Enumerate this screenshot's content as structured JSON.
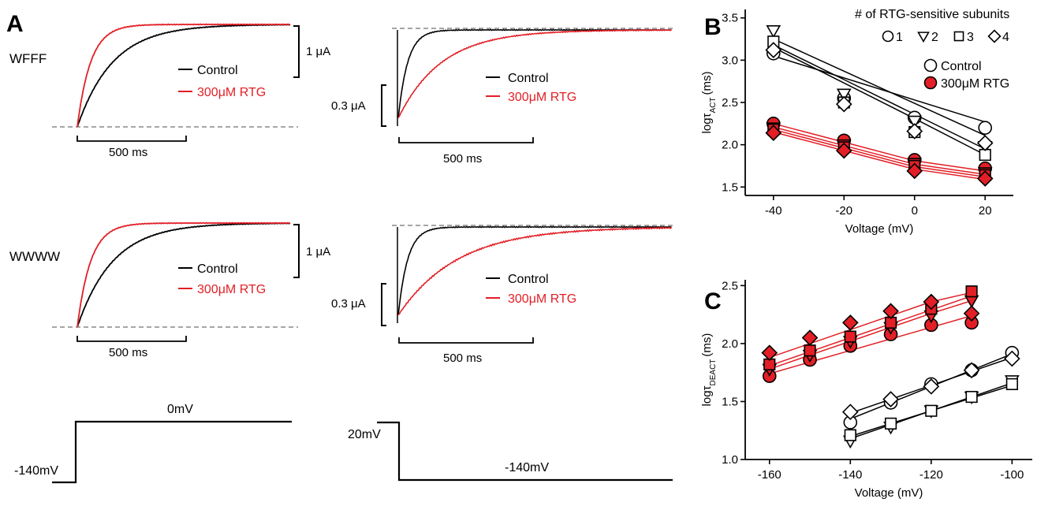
{
  "panels": {
    "a": {
      "letter": "A",
      "row_labels": [
        "WFFF",
        "WWWW"
      ],
      "legend": {
        "control": "Control",
        "rtg": "300μM RTG"
      },
      "left_scale": {
        "current": "1 μA",
        "time": "500 ms"
      },
      "right_scale": {
        "current": "0.3 μA",
        "time": "500 ms"
      },
      "left_protocol": {
        "holding": "-140mV",
        "step": "0mV"
      },
      "right_protocol": {
        "prepulse": "20mV",
        "step": "-140mV"
      }
    },
    "b": {
      "letter": "B"
    },
    "c": {
      "letter": "C"
    }
  },
  "colors": {
    "control": "#000000",
    "rtg": "#e21f26",
    "baseline": "#888888"
  },
  "chart_data": [
    {
      "panel": "B",
      "type": "scatter",
      "xlabel": "Voltage (mV)",
      "ylabel": "logτ",
      "ylabel_subscript": "ACT",
      "ylabel_unit": "(ms)",
      "xlim": [
        -48,
        28
      ],
      "ylim": [
        1.4,
        3.6
      ],
      "xticks": [
        -40,
        -20,
        0,
        20
      ],
      "yticks": [
        1.5,
        2.0,
        2.5,
        3.0,
        3.5
      ],
      "legend_title": "# of RTG-sensitive subunits",
      "marker_legend": [
        {
          "marker": "circle",
          "label": "1"
        },
        {
          "marker": "triangle-down",
          "label": "2"
        },
        {
          "marker": "square",
          "label": "3"
        },
        {
          "marker": "diamond",
          "label": "4"
        }
      ],
      "condition_legend": [
        {
          "name": "Control",
          "fill": "open"
        },
        {
          "name": "300μM RTG",
          "fill": "red"
        }
      ],
      "x": [
        -40,
        -20,
        0,
        20
      ],
      "series": [
        {
          "condition": "Control",
          "marker": "circle",
          "values": [
            3.08,
            2.55,
            2.32,
            2.2
          ],
          "fit": [
            3.05,
            2.79,
            2.53,
            2.27
          ]
        },
        {
          "condition": "Control",
          "marker": "triangle-down",
          "values": [
            3.35,
            2.6,
            2.28,
            1.98
          ],
          "fit": [
            3.25,
            2.87,
            2.49,
            2.11
          ]
        },
        {
          "condition": "Control",
          "marker": "square",
          "values": [
            3.22,
            2.5,
            2.15,
            1.88
          ],
          "fit": [
            3.18,
            2.77,
            2.36,
            1.95
          ]
        },
        {
          "condition": "Control",
          "marker": "diamond",
          "values": [
            3.12,
            2.48,
            2.16,
            2.02
          ],
          "fit": [
            3.15,
            2.73,
            2.31,
            1.88
          ]
        },
        {
          "condition": "300μM RTG",
          "marker": "circle",
          "values": [
            2.25,
            2.05,
            1.82,
            1.72
          ],
          "fit": [
            2.25,
            2.03,
            1.81,
            1.69
          ]
        },
        {
          "condition": "300μM RTG",
          "marker": "triangle-down",
          "values": [
            2.2,
            2.0,
            1.78,
            1.67
          ],
          "fit": [
            2.21,
            1.99,
            1.77,
            1.65
          ]
        },
        {
          "condition": "300μM RTG",
          "marker": "square",
          "values": [
            2.18,
            1.97,
            1.75,
            1.64
          ],
          "fit": [
            2.18,
            1.96,
            1.74,
            1.62
          ]
        },
        {
          "condition": "300μM RTG",
          "marker": "diamond",
          "values": [
            2.14,
            1.93,
            1.69,
            1.6
          ],
          "fit": [
            2.15,
            1.93,
            1.71,
            1.59
          ]
        }
      ]
    },
    {
      "panel": "C",
      "type": "scatter",
      "xlabel": "Voltage (mV)",
      "ylabel": "logτ",
      "ylabel_subscript": "DEACT",
      "ylabel_unit": "(ms)",
      "xlim": [
        -166,
        -95
      ],
      "ylim": [
        1.0,
        2.55
      ],
      "xticks": [
        -160,
        -140,
        -120,
        -100
      ],
      "yticks": [
        1.0,
        1.5,
        2.0,
        2.5
      ],
      "series": [
        {
          "condition": "300μM RTG",
          "marker": "circle",
          "x": [
            -160,
            -150,
            -140,
            -130,
            -120,
            -110
          ],
          "values": [
            1.72,
            1.86,
            1.98,
            2.08,
            2.16,
            2.18
          ],
          "fit": [
            1.74,
            1.84,
            1.94,
            2.04,
            2.14,
            2.24
          ]
        },
        {
          "condition": "300μM RTG",
          "marker": "triangle-down",
          "x": [
            -160,
            -150,
            -140,
            -130,
            -120,
            -110
          ],
          "values": [
            1.78,
            1.9,
            2.02,
            2.14,
            2.24,
            2.37
          ],
          "fit": [
            1.78,
            1.9,
            2.02,
            2.14,
            2.26,
            2.37
          ]
        },
        {
          "condition": "300μM RTG",
          "marker": "square",
          "x": [
            -160,
            -150,
            -140,
            -130,
            -120,
            -110
          ],
          "values": [
            1.82,
            1.94,
            2.06,
            2.18,
            2.3,
            2.45
          ],
          "fit": [
            1.81,
            1.93,
            2.05,
            2.17,
            2.29,
            2.41
          ]
        },
        {
          "condition": "300μM RTG",
          "marker": "diamond",
          "x": [
            -160,
            -150,
            -140,
            -130,
            -120,
            -110
          ],
          "values": [
            1.92,
            2.05,
            2.18,
            2.28,
            2.36,
            2.26
          ],
          "fit": [
            1.88,
            2.0,
            2.12,
            2.24,
            2.36,
            2.44
          ]
        },
        {
          "condition": "Control",
          "marker": "circle",
          "x": [
            -140,
            -130,
            -120,
            -110,
            -100
          ],
          "values": [
            1.32,
            1.49,
            1.65,
            1.77,
            1.92
          ],
          "fit": [
            1.35,
            1.49,
            1.63,
            1.77,
            1.91
          ]
        },
        {
          "condition": "Control",
          "marker": "triangle-down",
          "x": [
            -140,
            -130,
            -120,
            -110,
            -100
          ],
          "values": [
            1.16,
            1.28,
            1.42,
            1.54,
            1.68
          ],
          "fit": [
            1.18,
            1.3,
            1.42,
            1.54,
            1.66
          ]
        },
        {
          "condition": "Control",
          "marker": "square",
          "x": [
            -140,
            -130,
            -120,
            -110,
            -100
          ],
          "values": [
            1.21,
            1.31,
            1.42,
            1.54,
            1.65
          ],
          "fit": [
            1.2,
            1.31,
            1.42,
            1.53,
            1.64
          ]
        },
        {
          "condition": "Control",
          "marker": "diamond",
          "x": [
            -140,
            -130,
            -120,
            -110,
            -100
          ],
          "values": [
            1.41,
            1.52,
            1.63,
            1.77,
            1.87
          ],
          "fit": [
            1.4,
            1.52,
            1.64,
            1.76,
            1.88
          ]
        }
      ]
    }
  ]
}
